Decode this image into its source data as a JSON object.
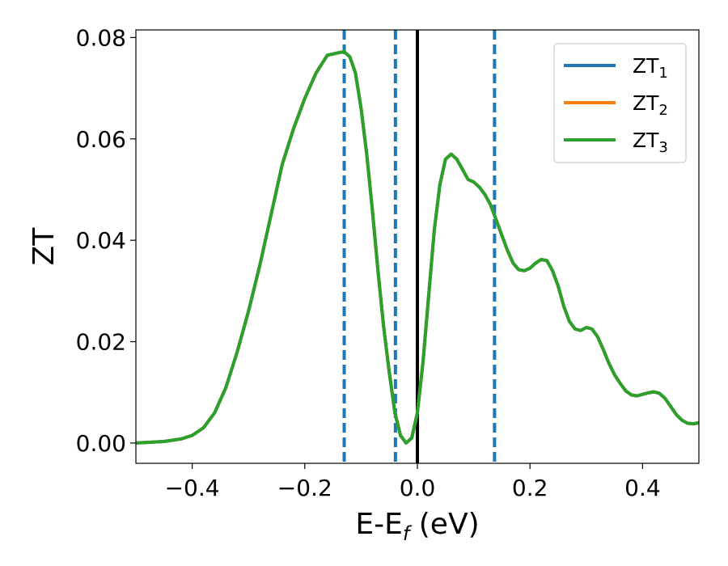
{
  "chart_data": {
    "type": "line",
    "xlabel": "E-E",
    "xlabel_sub": "f",
    "xlabel_unit": " (eV)",
    "ylabel": "ZT",
    "xlim": [
      -0.5,
      0.5
    ],
    "ylim": [
      -0.004,
      0.0815
    ],
    "x_ticks": [
      -0.4,
      -0.2,
      0.0,
      0.2,
      0.4
    ],
    "x_tick_labels": [
      "−0.4",
      "−0.2",
      "0.0",
      "0.2",
      "0.4"
    ],
    "y_ticks": [
      0.0,
      0.02,
      0.04,
      0.06,
      0.08
    ],
    "y_tick_labels": [
      "0.00",
      "0.02",
      "0.04",
      "0.06",
      "0.08"
    ],
    "grid": false,
    "legend_position": "top-right",
    "vertical_lines": [
      {
        "x": -0.13,
        "style": "dashed",
        "color": "#1f77b4"
      },
      {
        "x": -0.039,
        "style": "dashed",
        "color": "#1f77b4"
      },
      {
        "x": 0.0,
        "style": "solid",
        "color": "#000000"
      },
      {
        "x": 0.137,
        "style": "dashed",
        "color": "#1f77b4"
      }
    ],
    "x": [
      -0.5,
      -0.45,
      -0.42,
      -0.4,
      -0.38,
      -0.36,
      -0.34,
      -0.32,
      -0.3,
      -0.28,
      -0.26,
      -0.24,
      -0.22,
      -0.2,
      -0.18,
      -0.16,
      -0.14,
      -0.13,
      -0.12,
      -0.11,
      -0.1,
      -0.09,
      -0.08,
      -0.07,
      -0.06,
      -0.05,
      -0.04,
      -0.03,
      -0.02,
      -0.01,
      0.0,
      0.01,
      0.02,
      0.03,
      0.04,
      0.05,
      0.06,
      0.07,
      0.08,
      0.09,
      0.1,
      0.11,
      0.12,
      0.13,
      0.14,
      0.15,
      0.16,
      0.17,
      0.18,
      0.19,
      0.2,
      0.21,
      0.22,
      0.23,
      0.24,
      0.25,
      0.26,
      0.27,
      0.28,
      0.29,
      0.3,
      0.31,
      0.32,
      0.33,
      0.34,
      0.35,
      0.36,
      0.37,
      0.38,
      0.39,
      0.4,
      0.41,
      0.42,
      0.43,
      0.44,
      0.45,
      0.46,
      0.47,
      0.48,
      0.49,
      0.5
    ],
    "series": [
      {
        "name": "ZT",
        "name_sub": "1",
        "color": "#1f77b4",
        "values": [
          0.0,
          0.0003,
          0.0008,
          0.0015,
          0.003,
          0.006,
          0.011,
          0.018,
          0.026,
          0.035,
          0.045,
          0.055,
          0.062,
          0.068,
          0.073,
          0.0765,
          0.077,
          0.0772,
          0.0762,
          0.073,
          0.066,
          0.057,
          0.046,
          0.034,
          0.023,
          0.014,
          0.006,
          0.0015,
          0.0,
          0.001,
          0.006,
          0.016,
          0.029,
          0.042,
          0.051,
          0.056,
          0.057,
          0.056,
          0.054,
          0.052,
          0.0515,
          0.0505,
          0.049,
          0.047,
          0.044,
          0.041,
          0.038,
          0.0355,
          0.0342,
          0.034,
          0.0345,
          0.0355,
          0.0362,
          0.036,
          0.034,
          0.031,
          0.027,
          0.024,
          0.0225,
          0.0222,
          0.0228,
          0.0225,
          0.021,
          0.0185,
          0.0158,
          0.0135,
          0.0118,
          0.0103,
          0.0095,
          0.0093,
          0.0096,
          0.0099,
          0.0101,
          0.0098,
          0.0088,
          0.0072,
          0.0056,
          0.0045,
          0.0039,
          0.0038,
          0.004
        ]
      },
      {
        "name": "ZT",
        "name_sub": "2",
        "color": "#ff7f0e",
        "values": [
          0.0,
          0.0003,
          0.0008,
          0.0015,
          0.003,
          0.006,
          0.011,
          0.018,
          0.026,
          0.035,
          0.045,
          0.055,
          0.062,
          0.068,
          0.073,
          0.0765,
          0.077,
          0.0772,
          0.0762,
          0.073,
          0.066,
          0.057,
          0.046,
          0.034,
          0.023,
          0.014,
          0.006,
          0.0015,
          0.0,
          0.001,
          0.006,
          0.016,
          0.029,
          0.042,
          0.051,
          0.056,
          0.057,
          0.056,
          0.054,
          0.052,
          0.0515,
          0.0505,
          0.049,
          0.047,
          0.044,
          0.041,
          0.038,
          0.0355,
          0.0342,
          0.034,
          0.0345,
          0.0355,
          0.0362,
          0.036,
          0.034,
          0.031,
          0.027,
          0.024,
          0.0225,
          0.0222,
          0.0228,
          0.0225,
          0.021,
          0.0185,
          0.0158,
          0.0135,
          0.0118,
          0.0103,
          0.0095,
          0.0093,
          0.0096,
          0.0099,
          0.0101,
          0.0098,
          0.0088,
          0.0072,
          0.0056,
          0.0045,
          0.0039,
          0.0038,
          0.004
        ]
      },
      {
        "name": "ZT",
        "name_sub": "3",
        "color": "#2ca02c",
        "values": [
          0.0,
          0.0003,
          0.0008,
          0.0015,
          0.003,
          0.006,
          0.011,
          0.018,
          0.026,
          0.035,
          0.045,
          0.055,
          0.062,
          0.068,
          0.073,
          0.0765,
          0.077,
          0.0772,
          0.0762,
          0.073,
          0.066,
          0.057,
          0.046,
          0.034,
          0.023,
          0.014,
          0.006,
          0.0015,
          0.0,
          0.001,
          0.006,
          0.016,
          0.029,
          0.042,
          0.051,
          0.056,
          0.057,
          0.056,
          0.054,
          0.052,
          0.0515,
          0.0505,
          0.049,
          0.047,
          0.044,
          0.041,
          0.038,
          0.0355,
          0.0342,
          0.034,
          0.0345,
          0.0355,
          0.0362,
          0.036,
          0.034,
          0.031,
          0.027,
          0.024,
          0.0225,
          0.0222,
          0.0228,
          0.0225,
          0.021,
          0.0185,
          0.0158,
          0.0135,
          0.0118,
          0.0103,
          0.0095,
          0.0093,
          0.0096,
          0.0099,
          0.0101,
          0.0098,
          0.0088,
          0.0072,
          0.0056,
          0.0045,
          0.0039,
          0.0038,
          0.004
        ]
      }
    ]
  }
}
